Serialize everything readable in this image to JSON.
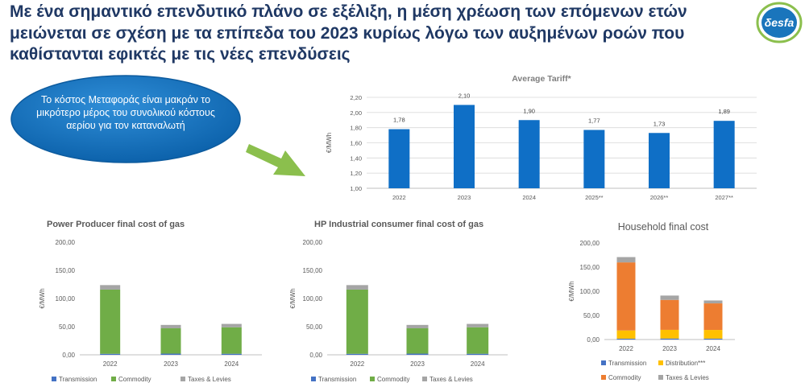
{
  "headline": "Με ένα σημαντικό επενδυτικό πλάνο σε εξέλιξη, η μέση χρέωση των επόμενων ετών μειώνεται σε σχέση με τα επίπεδα του 2023 κυρίως λόγω των αυξημένων ροών που καθίστανται εφικτές με τις νέες επενδύσεις",
  "logo": {
    "text": "δesfa",
    "icon": "desfa-logo"
  },
  "callout": "Το κόστος Μεταφοράς είναι μακράν το μικρότερο μέρος του συνολικού κόστους αερίου για τον καταναλωτή",
  "arrow_icon": "arrow-right-down-icon",
  "colors": {
    "headline": "#1f3864",
    "callout_fill": "#1170c0",
    "arrow": "#8bbf4d",
    "bar_blue": "#0f6fc6",
    "transmission": "#4472c4",
    "commodity": "#70ad47",
    "taxes": "#a5a5a5",
    "distribution": "#ffc000",
    "household_commodity": "#ed7d31"
  },
  "chart_data": [
    {
      "id": "tariff",
      "type": "bar",
      "title": "Average Tariff*",
      "ylabel": "€/MWh",
      "ylim": [
        1.0,
        2.2
      ],
      "yticks": [
        "1,00",
        "1,20",
        "1,40",
        "1,60",
        "1,80",
        "2,00",
        "2,20"
      ],
      "categories": [
        "2022",
        "2023",
        "2024",
        "2025**",
        "2026**",
        "2027**"
      ],
      "values": [
        1.78,
        2.1,
        1.9,
        1.77,
        1.73,
        1.89
      ],
      "value_labels": [
        "1,78",
        "2,10",
        "1,90",
        "1,77",
        "1,73",
        "1,89"
      ],
      "gridlines": true
    },
    {
      "id": "power",
      "type": "bar",
      "stacked": true,
      "title": "Power Producer final cost of gas",
      "ylabel": "€/MWh",
      "ylim": [
        0,
        200
      ],
      "yticks": [
        "0,00",
        "50,00",
        "100,00",
        "150,00",
        "200,00"
      ],
      "categories": [
        "2022",
        "2023",
        "2024"
      ],
      "series": [
        {
          "name": "Transmission",
          "color": "#4472c4",
          "values": [
            1.8,
            2.1,
            1.9
          ]
        },
        {
          "name": "Commodity",
          "color": "#70ad47",
          "values": [
            114,
            45,
            47
          ]
        },
        {
          "name": "Taxes & Levies",
          "color": "#a5a5a5",
          "values": [
            8,
            6,
            6
          ]
        }
      ],
      "legend": "bottom"
    },
    {
      "id": "industrial",
      "type": "bar",
      "stacked": true,
      "title": "HP Industrial consumer final cost of gas",
      "ylabel": "€/MWh",
      "ylim": [
        0,
        200
      ],
      "yticks": [
        "0,00",
        "50,00",
        "100,00",
        "150,00",
        "200,00"
      ],
      "categories": [
        "2022",
        "2023",
        "2024"
      ],
      "series": [
        {
          "name": "Transmission",
          "color": "#4472c4",
          "values": [
            1.8,
            2.1,
            1.9
          ]
        },
        {
          "name": "Commodity",
          "color": "#70ad47",
          "values": [
            114,
            45,
            47
          ]
        },
        {
          "name": "Taxes & Levies",
          "color": "#a5a5a5",
          "values": [
            8,
            6,
            6
          ]
        }
      ],
      "legend": "bottom"
    },
    {
      "id": "household",
      "type": "bar",
      "stacked": true,
      "title": "Household final cost",
      "ylabel": "€/MWh",
      "ylim": [
        0,
        200
      ],
      "yticks": [
        "0,00",
        "50,00",
        "100,00",
        "150,00",
        "200,00"
      ],
      "categories": [
        "2022",
        "2023",
        "2024"
      ],
      "series": [
        {
          "name": "Transmission",
          "color": "#4472c4",
          "values": [
            1.8,
            2.1,
            1.9
          ]
        },
        {
          "name": "Distribution***",
          "color": "#ffc000",
          "values": [
            17,
            18,
            18
          ]
        },
        {
          "name": "Commodity",
          "color": "#ed7d31",
          "values": [
            141,
            62,
            55
          ]
        },
        {
          "name": "Taxes & Levies",
          "color": "#a5a5a5",
          "values": [
            11,
            9,
            6
          ]
        }
      ],
      "legend": "bottom"
    }
  ]
}
